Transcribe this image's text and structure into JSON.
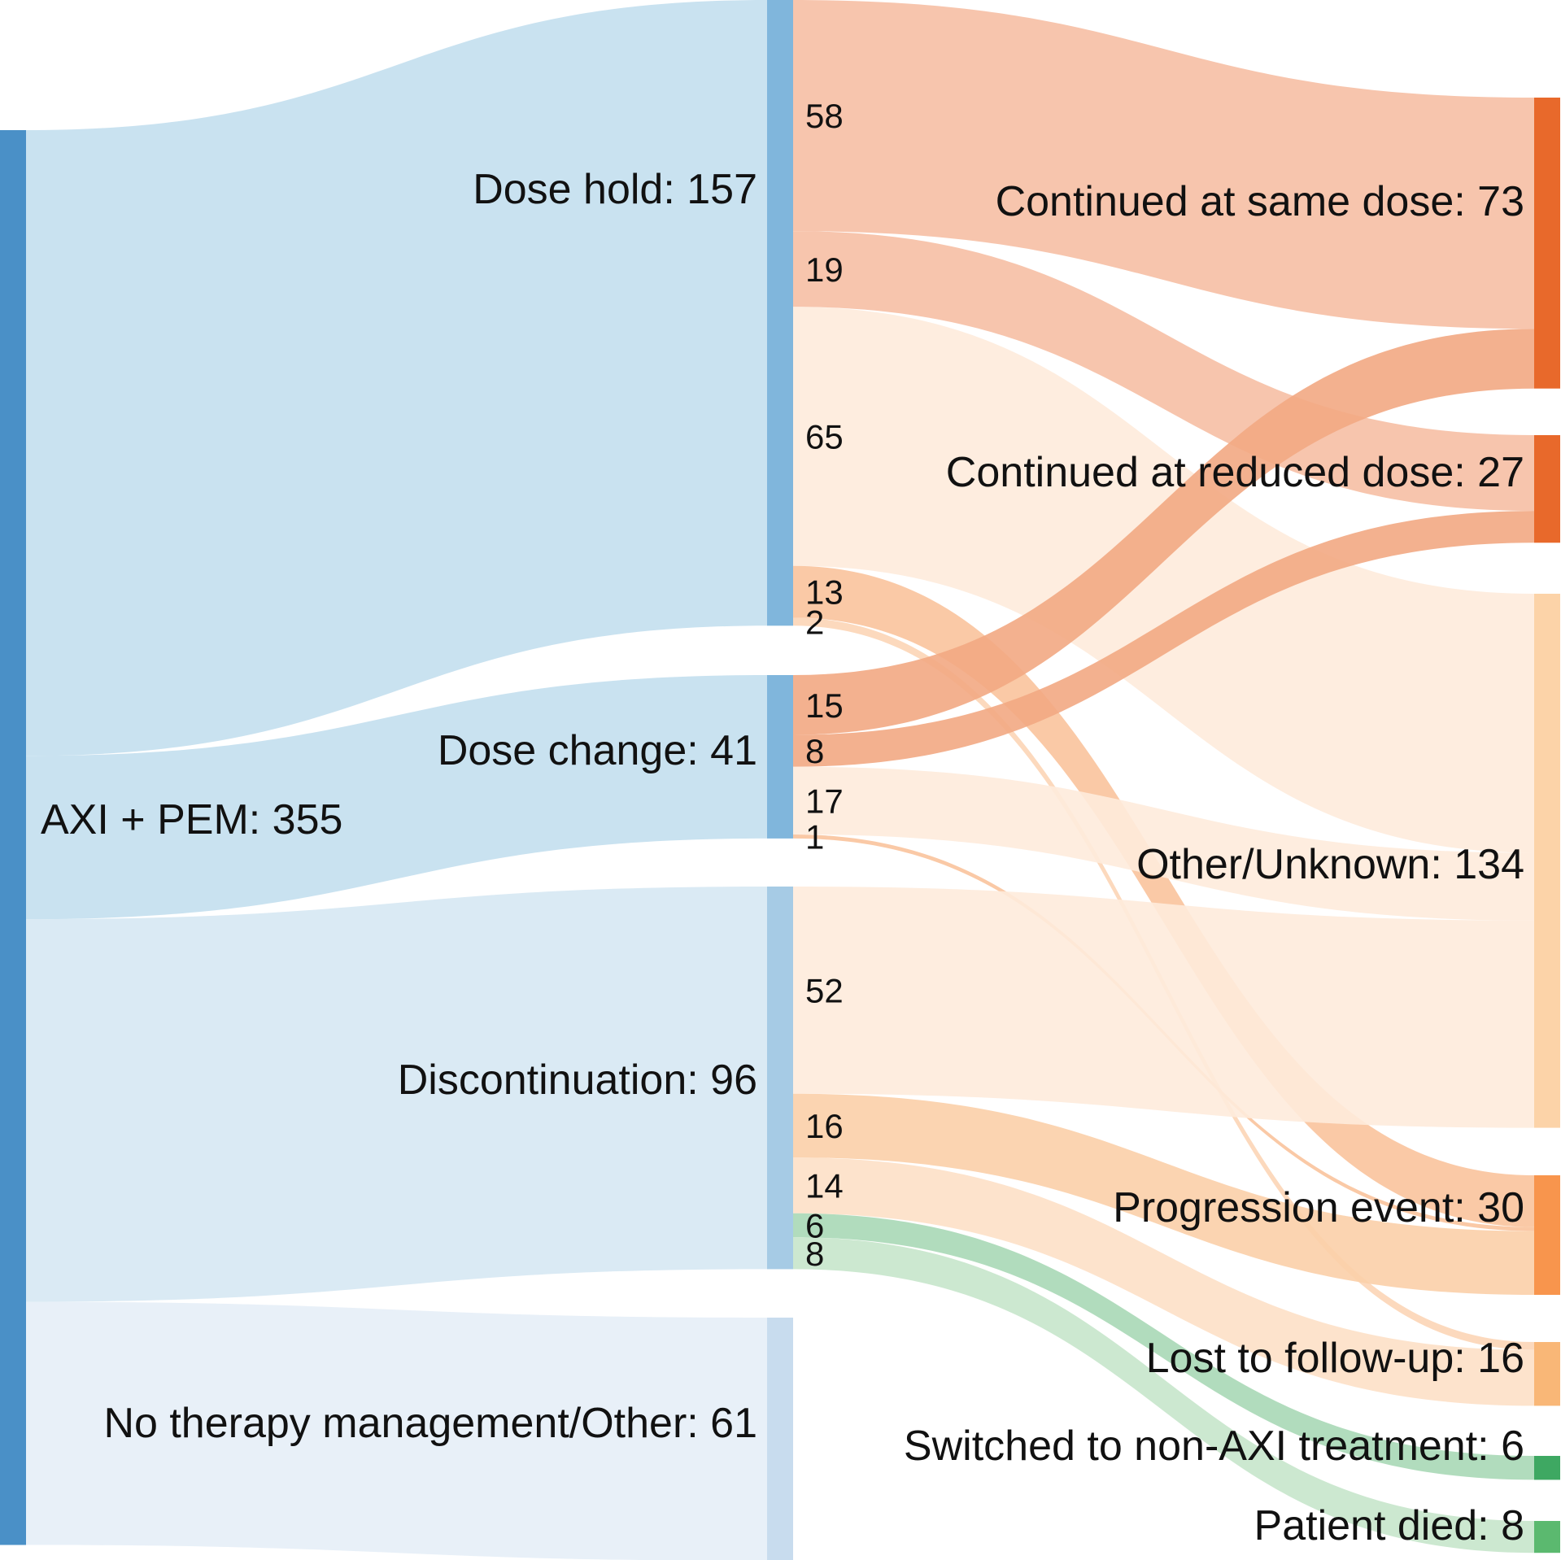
{
  "chart_data": {
    "type": "sankey",
    "title": "",
    "nodes": [
      {
        "id": "axi_pem",
        "label": "AXI + PEM: 355",
        "column": 0,
        "color": "#4a90c7"
      },
      {
        "id": "dose_hold",
        "label": "Dose hold: 157",
        "column": 1,
        "color": "#80b6dc"
      },
      {
        "id": "dose_change",
        "label": "Dose change: 41",
        "column": 1,
        "color": "#80b6dc"
      },
      {
        "id": "discontinuation",
        "label": "Discontinuation: 96",
        "column": 1,
        "color": "#a6cbe5"
      },
      {
        "id": "no_therapy",
        "label": "No therapy management/Other: 61",
        "column": 1,
        "color": "#c8dcee"
      },
      {
        "id": "same_dose",
        "label": "Continued at same dose: 73",
        "column": 2,
        "color": "#e8692b"
      },
      {
        "id": "reduced_dose",
        "label": "Continued at reduced dose: 27",
        "column": 2,
        "color": "#e8692b"
      },
      {
        "id": "other_unknown",
        "label": "Other/Unknown: 134",
        "column": 2,
        "color": "#fcd3a8"
      },
      {
        "id": "progression",
        "label": "Progression event: 30",
        "column": 2,
        "color": "#f8954d"
      },
      {
        "id": "lost",
        "label": "Lost to follow-up: 16",
        "column": 2,
        "color": "#f9b777"
      },
      {
        "id": "switched",
        "label": "Switched to non-AXI treatment: 6",
        "column": 2,
        "color": "#3ea862"
      },
      {
        "id": "died",
        "label": "Patient died: 8",
        "column": 2,
        "color": "#5bb96f"
      }
    ],
    "links": [
      {
        "source": "axi_pem",
        "target": "dose_hold",
        "value": 157,
        "label": "",
        "color": "#c3dfee"
      },
      {
        "source": "axi_pem",
        "target": "dose_change",
        "value": 41,
        "label": "",
        "color": "#c3dfee"
      },
      {
        "source": "axi_pem",
        "target": "discontinuation",
        "value": 96,
        "label": "",
        "color": "#d6e8f3"
      },
      {
        "source": "axi_pem",
        "target": "no_therapy",
        "value": 61,
        "label": "",
        "color": "#e6eef7"
      },
      {
        "source": "dose_hold",
        "target": "same_dose",
        "value": 58,
        "label": "58",
        "color": "#f6bfa4"
      },
      {
        "source": "dose_hold",
        "target": "reduced_dose",
        "value": 19,
        "label": "19",
        "color": "#f6bfa4"
      },
      {
        "source": "dose_hold",
        "target": "other_unknown",
        "value": 65,
        "label": "65",
        "color": "#feebdc"
      },
      {
        "source": "dose_hold",
        "target": "progression",
        "value": 13,
        "label": "13",
        "color": "#f9c39c"
      },
      {
        "source": "dose_hold",
        "target": "lost",
        "value": 2,
        "label": "2",
        "color": "#fcd5b6"
      },
      {
        "source": "dose_change",
        "target": "same_dose",
        "value": 15,
        "label": "15",
        "color": "#f2a883"
      },
      {
        "source": "dose_change",
        "target": "reduced_dose",
        "value": 8,
        "label": "8",
        "color": "#f2a883"
      },
      {
        "source": "dose_change",
        "target": "other_unknown",
        "value": 17,
        "label": "17",
        "color": "#feebdc"
      },
      {
        "source": "dose_change",
        "target": "progression",
        "value": 1,
        "label": "1",
        "color": "#f9c39c"
      },
      {
        "source": "discontinuation",
        "target": "other_unknown",
        "value": 52,
        "label": "52",
        "color": "#feebdc"
      },
      {
        "source": "discontinuation",
        "target": "progression",
        "value": 16,
        "label": "16",
        "color": "#fbcfa9"
      },
      {
        "source": "discontinuation",
        "target": "lost",
        "value": 14,
        "label": "14",
        "color": "#fde0c6"
      },
      {
        "source": "discontinuation",
        "target": "switched",
        "value": 6,
        "label": "6",
        "color": "#a9d8b6"
      },
      {
        "source": "discontinuation",
        "target": "died",
        "value": 8,
        "label": "8",
        "color": "#c7e6cb"
      }
    ]
  }
}
